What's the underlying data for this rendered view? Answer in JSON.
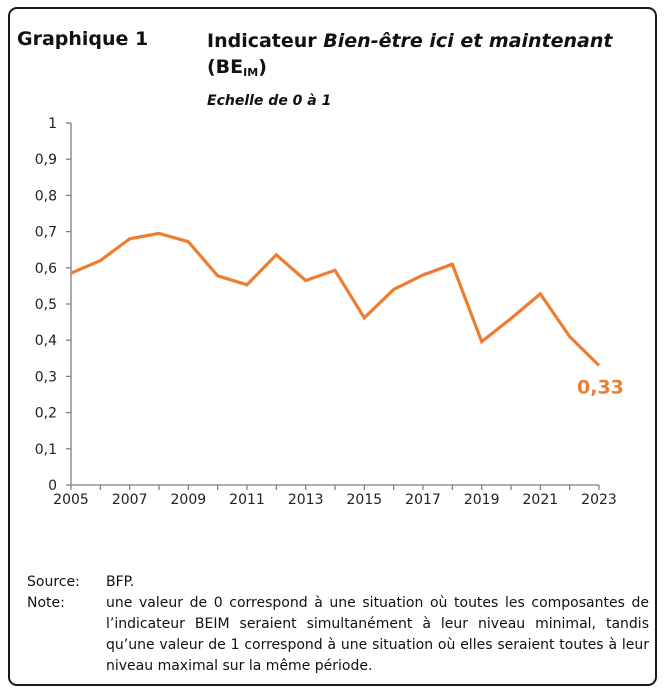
{
  "figure": {
    "number": "Graphique 1",
    "title_prefix": "Indicateur ",
    "title_italic": "Bien-être ici et maintenant",
    "title_abbr_main": "(BE",
    "title_abbr_sub": "IM",
    "title_abbr_end": ")",
    "subtitle": "Echelle de 0 à 1"
  },
  "chart_data": {
    "type": "line",
    "x": [
      2005,
      2006,
      2007,
      2008,
      2009,
      2010,
      2011,
      2012,
      2013,
      2014,
      2015,
      2016,
      2017,
      2018,
      2019,
      2020,
      2021,
      2022,
      2023
    ],
    "series": [
      {
        "values": [
          0.585,
          0.62,
          0.68,
          0.695,
          0.672,
          0.578,
          0.553,
          0.636,
          0.565,
          0.593,
          0.462,
          0.54,
          0.58,
          0.61,
          0.396,
          0.46,
          0.528,
          0.41,
          0.33
        ]
      }
    ],
    "xlim": [
      2005,
      2023
    ],
    "ylim": [
      0,
      1
    ],
    "x_tick_labels": [
      "2005",
      "2007",
      "2009",
      "2011",
      "2013",
      "2015",
      "2017",
      "2019",
      "2021",
      "2023"
    ],
    "y_tick_labels": [
      "0",
      "0,1",
      "0,2",
      "0,3",
      "0,4",
      "0,5",
      "0,6",
      "0,7",
      "0,8",
      "0,9",
      "1"
    ],
    "end_label": "0,33",
    "line_color": "#ED7D31",
    "grid": false,
    "legend": "none"
  },
  "notes": {
    "source_label": "Source:",
    "source_text": "BFP.",
    "note_label": "Note:",
    "note_text": "une valeur de 0 correspond à une situation où toutes les composantes de l’indicateur BEIM seraient simultanément à leur niveau minimal, tandis qu’une valeur de 1 correspond à une situation où elles seraient toutes à leur niveau maximal sur la même période."
  }
}
